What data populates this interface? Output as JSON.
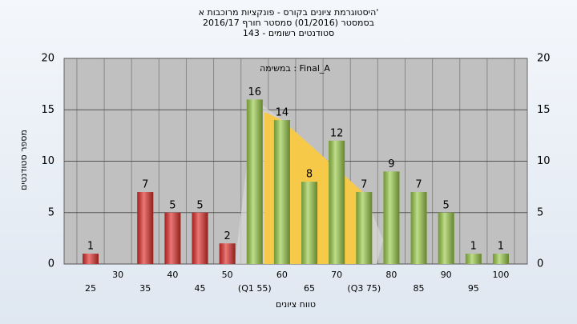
{
  "chart_data": {
    "type": "bar",
    "title": "היסטוגרמת ציונים בקורס - פונקציות מרוכבות א'",
    "subtitle": "בסמסטר (01/2016) סמסטר חורף 2016/17",
    "subtitle2": "143 - סטודנטים רשומים",
    "annotation": "במשימה : Final_A",
    "y_label": "מספר סטודנטים",
    "x_label": "טווח ציונים",
    "categories": [
      "25",
      "30",
      "35",
      "40",
      "45",
      "50",
      "(Q1 55)",
      "60",
      "65",
      "70",
      "(Q3 75)",
      "80",
      "85",
      "90",
      "95",
      "100"
    ],
    "values": [
      1,
      0,
      7,
      5,
      5,
      2,
      16,
      14,
      8,
      12,
      7,
      9,
      7,
      5,
      1,
      1
    ],
    "value_labels": [
      "1",
      null,
      "7",
      "5",
      "5",
      "2",
      "16",
      "14",
      "8",
      "12",
      "7",
      "9",
      "7",
      "5",
      "1",
      "1"
    ],
    "colors": [
      "#e0302c",
      "#e0302c",
      "#e0302c",
      "#e0302c",
      "#e0302c",
      "#e0302c",
      "#9ccc4a",
      "#9ccc4a",
      "#9ccc4a",
      "#9ccc4a",
      "#9ccc4a",
      "#9ccc4a",
      "#9ccc4a",
      "#9ccc4a",
      "#9ccc4a",
      "#9ccc4a"
    ],
    "ylim": [
      0,
      20
    ],
    "yticks": [
      0,
      5,
      10,
      15,
      20
    ],
    "grid": true
  }
}
